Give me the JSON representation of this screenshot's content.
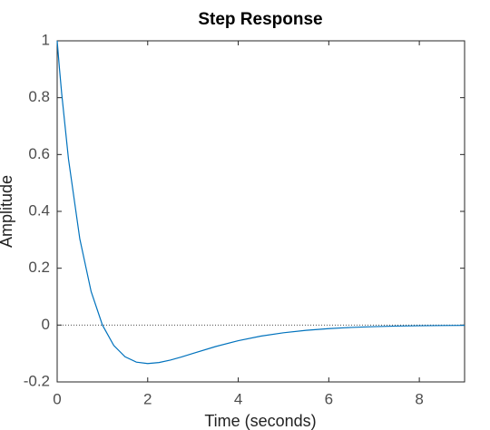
{
  "chart_data": {
    "type": "line",
    "title": "Step Response",
    "xlabel": "Time (seconds)",
    "ylabel": "Amplitude",
    "x": [
      0,
      0.05,
      0.1,
      0.25,
      0.5,
      0.75,
      1,
      1.25,
      1.5,
      1.75,
      2,
      2.25,
      2.5,
      2.75,
      3,
      3.5,
      4,
      4.5,
      5,
      5.5,
      6,
      6.5,
      7,
      7.5,
      8,
      8.5,
      9
    ],
    "values": [
      1,
      0.9037,
      0.8144,
      0.5841,
      0.3033,
      0.1181,
      0,
      -0.0716,
      -0.1116,
      -0.1303,
      -0.1353,
      -0.1318,
      -0.1231,
      -0.1119,
      -0.0996,
      -0.0755,
      -0.0549,
      -0.0389,
      -0.027,
      -0.0184,
      -0.0124,
      -0.0083,
      -0.0055,
      -0.0036,
      -0.0023,
      -0.0015,
      -0.001
    ],
    "color": "#0072bd",
    "xlim": [
      0,
      9
    ],
    "xticks": [
      0,
      2,
      4,
      6,
      8
    ],
    "ylim": [
      -0.2,
      1
    ],
    "yticks": [
      -0.2,
      0,
      0.2,
      0.4,
      0.6,
      0.8,
      1
    ],
    "zero_line": true
  }
}
